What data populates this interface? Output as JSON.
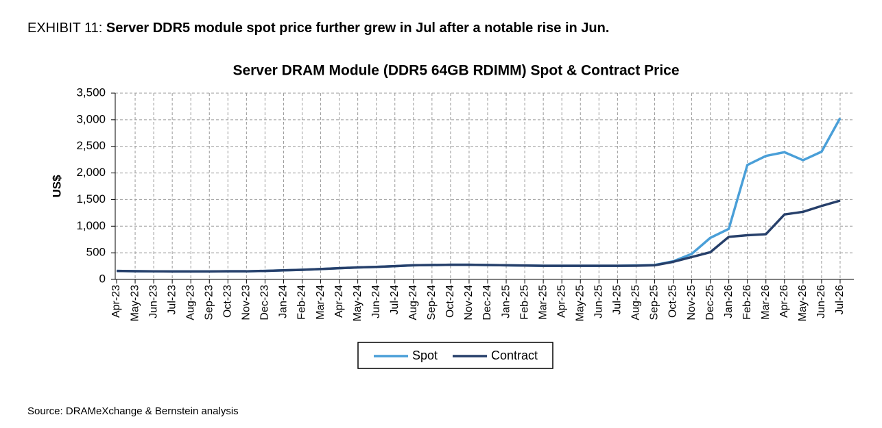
{
  "header": {
    "label": "EXHIBIT 11:",
    "headline": "Server DDR5 module spot price further grew in Jul after a notable rise in Jun."
  },
  "chart_data": {
    "type": "line",
    "title": "Server DRAM Module (DDR5 64GB RDIMM) Spot & Contract Price",
    "ylabel": "US$",
    "categories": [
      "Apr-23",
      "May-23",
      "Jun-23",
      "Jul-23",
      "Aug-23",
      "Sep-23",
      "Oct-23",
      "Nov-23",
      "Dec-23",
      "Jan-24",
      "Feb-24",
      "Mar-24",
      "Apr-24",
      "May-24",
      "Jun-24",
      "Jul-24",
      "Aug-24",
      "Sep-24",
      "Oct-24",
      "Nov-24",
      "Dec-24",
      "Jan-25",
      "Feb-25",
      "Mar-25",
      "Apr-25",
      "May-25",
      "Jun-25",
      "Jul-25",
      "Aug-25",
      "Sep-25",
      "Oct-25",
      "Nov-25",
      "Dec-25",
      "Jan-26",
      "Feb-26",
      "Mar-26",
      "Apr-26",
      "May-26",
      "Jun-26",
      "Jul-26"
    ],
    "series": [
      {
        "name": "Spot",
        "color": "#4a9fd8",
        "values": [
          160,
          155,
          152,
          150,
          150,
          150,
          152,
          152,
          160,
          170,
          180,
          195,
          210,
          225,
          235,
          250,
          265,
          270,
          275,
          275,
          270,
          265,
          260,
          255,
          255,
          255,
          255,
          255,
          260,
          270,
          340,
          480,
          780,
          950,
          2150,
          2320,
          2390,
          2240,
          2400,
          3030
        ]
      },
      {
        "name": "Contract",
        "color": "#263f6a",
        "values": [
          160,
          155,
          152,
          150,
          150,
          150,
          152,
          152,
          160,
          170,
          180,
          195,
          210,
          225,
          235,
          250,
          265,
          270,
          275,
          275,
          270,
          265,
          260,
          255,
          255,
          255,
          255,
          255,
          258,
          265,
          330,
          420,
          510,
          800,
          830,
          850,
          1220,
          1270,
          1380,
          1480
        ]
      }
    ],
    "ylim": [
      0,
      3500
    ],
    "yticks": [
      0,
      500,
      {
        "value": 1000,
        "label": "1,000"
      },
      {
        "value": 1500,
        "label": "1,500"
      },
      {
        "value": 2000,
        "label": "2,000"
      },
      {
        "value": 2500,
        "label": "2,500"
      },
      {
        "value": 3000,
        "label": "3,000"
      },
      {
        "value": 3500,
        "label": "3,500"
      }
    ],
    "grid": true,
    "legend": "bottom"
  },
  "source": "Source: DRAMeXchange & Bernstein analysis"
}
